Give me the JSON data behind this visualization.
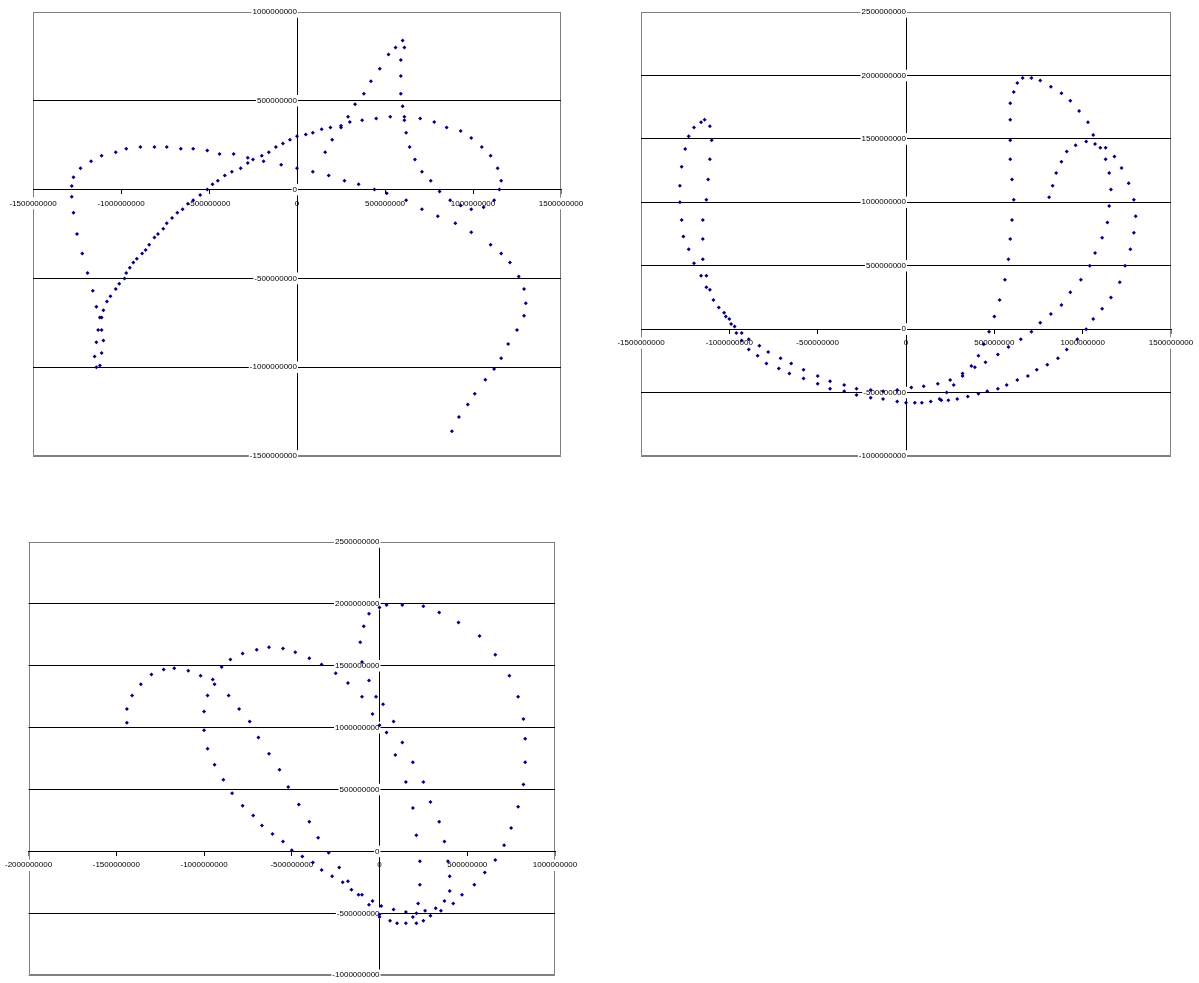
{
  "chart_data": [
    {
      "type": "scatter",
      "color": "#000080",
      "marker": "diamond",
      "grid": "y",
      "xlim": [
        -1500000000,
        1500000000
      ],
      "xticks": [
        -1500000000,
        -1000000000,
        -500000000,
        0,
        500000000,
        1000000000,
        1500000000
      ],
      "ylim": [
        -1500000000,
        1000000000
      ],
      "yticks": [
        -1500000000,
        -1000000000,
        -500000000,
        0,
        500000000,
        1000000000
      ],
      "x": [
        160000000.0,
        200000000.0,
        250000000.0,
        290000000.0,
        330000000.0,
        380000000.0,
        420000000.0,
        470000000.0,
        520000000.0,
        560000000.0,
        600000000.0,
        610000000.0,
        590000000.0,
        590000000.0,
        590000000.0,
        600000000.0,
        610000000.0,
        620000000.0,
        640000000.0,
        670000000.0,
        710000000.0,
        760000000.0,
        810000000.0,
        870000000.0,
        930000000.0,
        990000000.0,
        1060000000.0,
        1120000000.0,
        1150000000.0,
        1160000000.0,
        1140000000.0,
        1100000000.0,
        1050000000.0,
        990000000.0,
        930000000.0,
        850000000.0,
        780000000.0,
        700000000.0,
        610000000.0,
        530000000.0,
        450000000.0,
        370000000.0,
        300000000.0,
        250000000.0,
        190000000.0,
        140000000.0,
        90000000.0,
        50000000.0,
        0,
        -40000000.0,
        -80000000.0,
        -120000000.0,
        -160000000.0,
        -200000000.0,
        -250000000.0,
        -280000000.0,
        -320000000.0,
        -370000000.0,
        -410000000.0,
        -450000000.0,
        -480000000.0,
        -510000000.0,
        -550000000.0,
        -590000000.0,
        -620000000.0,
        -650000000.0,
        -680000000.0,
        -710000000.0,
        -740000000.0,
        -760000000.0,
        -790000000.0,
        -810000000.0,
        -840000000.0,
        -860000000.0,
        -880000000.0,
        -910000000.0,
        -930000000.0,
        -950000000.0,
        -970000000.0,
        -980000000.0,
        -1010000000.0,
        -1030000000.0,
        -1060000000.0,
        -1080000000.0,
        -1100000000.0,
        -1110000000.0,
        -1130000000.0,
        -1140000000.0,
        -1150000000.0,
        -1140000000.0,
        -1120000000.0,
        -1110000000.0,
        -1100000000.0,
        -1110000000.0,
        -1120000000.0,
        -1140000000.0,
        -1160000000.0,
        -1190000000.0,
        -1220000000.0,
        -1250000000.0,
        -1270000000.0,
        -1280000000.0,
        -1280000000.0,
        -1270000000.0,
        -1230000000.0,
        -1170000000.0,
        -1110000000.0,
        -1030000000.0,
        -970000000.0,
        -890000000.0,
        -810000000.0,
        -740000000.0,
        -660000000.0,
        -590000000.0,
        -510000000.0,
        -440000000.0,
        -360000000.0,
        -280000000.0,
        -190000000.0,
        -90000000.0,
        0,
        90000000.0,
        180000000.0,
        270000000.0,
        350000000.0,
        440000000.0,
        510000000.0,
        620000000.0,
        710000000.0,
        800000000.0,
        900000000.0,
        990000000.0,
        1100000000.0,
        1160000000.0,
        1210000000.0,
        1260000000.0,
        1290000000.0,
        1300000000.0,
        1290000000.0,
        1250000000.0,
        1200000000.0,
        1160000000.0,
        1120000000.0,
        1070000000.0,
        1010000000.0,
        970000000.0,
        920000000.0,
        880000000.0
      ],
      "values": [
        210000000.0,
        280000000.0,
        350000000.0,
        410000000.0,
        480000000.0,
        540000000.0,
        610000000.0,
        680000000.0,
        760000000.0,
        800000000.0,
        840000000.0,
        800000000.0,
        730000000.0,
        640000000.0,
        540000000.0,
        470000000.0,
        390000000.0,
        320000000.0,
        240000000.0,
        170000000.0,
        100000000.0,
        50000000.0,
        -10000000.0,
        -60000000.0,
        -90000000.0,
        -110000000.0,
        -100000000.0,
        -60000000.0,
        0,
        50000000.0,
        120000000.0,
        190000000.0,
        240000000.0,
        290000000.0,
        330000000.0,
        350000000.0,
        380000000.0,
        400000000.0,
        410000000.0,
        410000000.0,
        400000000.0,
        390000000.0,
        380000000.0,
        360000000.0,
        350000000.0,
        340000000.0,
        320000000.0,
        310000000.0,
        300000000.0,
        280000000.0,
        260000000.0,
        240000000.0,
        210000000.0,
        190000000.0,
        170000000.0,
        150000000.0,
        120000000.0,
        100000000.0,
        80000000.0,
        50000000.0,
        30000000.0,
        0,
        -30000000.0,
        -60000000.0,
        -80000000.0,
        -110000000.0,
        -130000000.0,
        -160000000.0,
        -190000000.0,
        -220000000.0,
        -250000000.0,
        -270000000.0,
        -310000000.0,
        -340000000.0,
        -360000000.0,
        -390000000.0,
        -410000000.0,
        -440000000.0,
        -470000000.0,
        -500000000.0,
        -530000000.0,
        -560000000.0,
        -600000000.0,
        -630000000.0,
        -680000000.0,
        -720000000.0,
        -790000000.0,
        -860000000.0,
        -940000000.0,
        -1000000000.0,
        -990000000.0,
        -920000000.0,
        -850000000.0,
        -790000000.0,
        -720000000.0,
        -660000000.0,
        -570000000.0,
        -470000000.0,
        -360000000.0,
        -250000000.0,
        -130000000.0,
        -40000000.0,
        20000000.0,
        70000000.0,
        120000000.0,
        160000000.0,
        190000000.0,
        210000000.0,
        230000000.0,
        240000000.0,
        240000000.0,
        240000000.0,
        230000000.0,
        230000000.0,
        220000000.0,
        200000000.0,
        200000000.0,
        180000000.0,
        160000000.0,
        140000000.0,
        120000000.0,
        100000000.0,
        80000000.0,
        50000000.0,
        30000000.0,
        0,
        -20000000.0,
        -60000000.0,
        -110000000.0,
        -150000000.0,
        -190000000.0,
        -240000000.0,
        -310000000.0,
        -360000000.0,
        -410000000.0,
        -490000000.0,
        -560000000.0,
        -640000000.0,
        -710000000.0,
        -790000000.0,
        -870000000.0,
        -950000000.0,
        -1010000000.0,
        -1070000000.0,
        -1150000000.0,
        -1210000000.0,
        -1280000000.0,
        -1360000000.0
      ]
    },
    {
      "type": "scatter",
      "color": "#000080",
      "marker": "diamond",
      "grid": "y",
      "xlim": [
        -1500000000,
        1500000000
      ],
      "xticks": [
        -1500000000,
        -1000000000,
        -500000000,
        0,
        500000000,
        1000000000,
        1500000000
      ],
      "ylim": [
        -1000000000,
        2500000000
      ],
      "yticks": [
        -1000000000,
        -500000000,
        0,
        500000000,
        1000000000,
        1500000000,
        2000000000,
        2500000000
      ],
      "x": [
        -1140000000.0,
        -1110000000.0,
        -1100000000.0,
        -1110000000.0,
        -1120000000.0,
        -1130000000.0,
        -1150000000.0,
        -1150000000.0,
        -1150000000.0,
        -1130000000.0,
        -1110000000.0,
        -1160000000.0,
        -1200000000.0,
        -1230000000.0,
        -1250000000.0,
        -1270000000.0,
        -1280000000.0,
        -1280000000.0,
        -1270000000.0,
        -1260000000.0,
        -1230000000.0,
        -1200000000.0,
        -1160000000.0,
        -1130000000.0,
        -1090000000.0,
        -1060000000.0,
        -1020000000.0,
        -990000000.0,
        -960000000.0,
        -930000000.0,
        -890000000.0,
        -840000000.0,
        -790000000.0,
        -720000000.0,
        -660000000.0,
        -580000000.0,
        -500000000.0,
        -430000000.0,
        -350000000.0,
        -280000000.0,
        -200000000.0,
        -130000000.0,
        -50000000.0,
        0,
        50000000.0,
        90000000.0,
        140000000.0,
        200000000.0,
        240000000.0,
        290000000.0,
        350000000.0,
        410000000.0,
        460000000.0,
        520000000.0,
        570000000.0,
        630000000.0,
        690000000.0,
        740000000.0,
        800000000.0,
        860000000.0,
        910000000.0,
        970000000.0,
        1020000000.0,
        1060000000.0,
        1110000000.0,
        1160000000.0,
        1210000000.0,
        1240000000.0,
        1270000000.0,
        1290000000.0,
        1300000000.0,
        1290000000.0,
        1260000000.0,
        1220000000.0,
        1180000000.0,
        1130000000.0,
        1070000000.0,
        1020000000.0,
        960000000.0,
        910000000.0,
        880000000.0,
        850000000.0,
        830000000.0,
        810000000.0,
        -1030000000.0,
        -1000000000.0,
        -970000000.0,
        -930000000.0,
        -890000000.0,
        -830000000.0,
        -780000000.0,
        -710000000.0,
        -650000000.0,
        -580000000.0,
        -500000000.0,
        -430000000.0,
        -350000000.0,
        -280000000.0,
        -200000000.0,
        -130000000.0,
        -50000000.0,
        30000000.0,
        100000000.0,
        180000000.0,
        250000000.0,
        320000000.0,
        390000000.0,
        450000000.0,
        520000000.0,
        580000000.0,
        650000000.0,
        710000000.0,
        760000000.0,
        820000000.0,
        880000000.0,
        930000000.0,
        990000000.0,
        1040000000.0,
        1070000000.0,
        1110000000.0,
        1140000000.0,
        1150000000.0,
        1160000000.0,
        1150000000.0,
        1130000000.0,
        1100000000.0,
        1060000000.0,
        1030000000.0,
        980000000.0,
        930000000.0,
        880000000.0,
        820000000.0,
        760000000.0,
        710000000.0,
        660000000.0,
        630000000.0,
        610000000.0,
        590000000.0,
        590000000.0,
        590000000.0,
        590000000.0,
        600000000.0,
        610000000.0,
        600000000.0,
        590000000.0,
        580000000.0,
        560000000.0,
        530000000.0,
        500000000.0,
        470000000.0,
        440000000.0,
        410000000.0,
        370000000.0,
        320000000.0,
        270000000.0,
        230000000.0,
        190000000.0
      ],
      "values": [
        1650000000.0,
        1600000000.0,
        1490000000.0,
        1340000000.0,
        1180000000.0,
        1020000000.0,
        860000000.0,
        710000000.0,
        550000000.0,
        420000000.0,
        310000000.0,
        1630000000.0,
        1590000000.0,
        1520000000.0,
        1420000000.0,
        1280000000.0,
        1130000000.0,
        1000000000.0,
        860000000.0,
        730000000.0,
        630000000.0,
        520000000.0,
        420000000.0,
        330000000.0,
        230000000.0,
        170000000.0,
        100000000.0,
        40000000.0,
        -30000000.0,
        -90000000.0,
        -160000000.0,
        -210000000.0,
        -270000000.0,
        -310000000.0,
        -350000000.0,
        -390000000.0,
        -430000000.0,
        -470000000.0,
        -490000000.0,
        -520000000.0,
        -540000000.0,
        -550000000.0,
        -570000000.0,
        -580000000.0,
        -580000000.0,
        -580000000.0,
        -570000000.0,
        -560000000.0,
        -560000000.0,
        -550000000.0,
        -530000000.0,
        -510000000.0,
        -490000000.0,
        -470000000.0,
        -440000000.0,
        -400000000.0,
        -370000000.0,
        -320000000.0,
        -280000000.0,
        -230000000.0,
        -160000000.0,
        -80000000.0,
        0,
        80000000.0,
        160000000.0,
        250000000.0,
        370000000.0,
        500000000.0,
        630000000.0,
        760000000.0,
        890000000.0,
        1020000000.0,
        1150000000.0,
        1270000000.0,
        1360000000.0,
        1430000000.0,
        1460000000.0,
        1480000000.0,
        1450000000.0,
        1400000000.0,
        1320000000.0,
        1230000000.0,
        1130000000.0,
        1040000000.0,
        130000000.0,
        80000000.0,
        20000000.0,
        -30000000.0,
        -80000000.0,
        -130000000.0,
        -180000000.0,
        -230000000.0,
        -270000000.0,
        -320000000.0,
        -370000000.0,
        -410000000.0,
        -440000000.0,
        -470000000.0,
        -480000000.0,
        -490000000.0,
        -480000000.0,
        -460000000.0,
        -450000000.0,
        -430000000.0,
        -400000000.0,
        -350000000.0,
        -300000000.0,
        -260000000.0,
        -200000000.0,
        -140000000.0,
        -80000000.0,
        -20000000.0,
        50000000.0,
        120000000.0,
        190000000.0,
        290000000.0,
        390000000.0,
        500000000.0,
        600000000.0,
        720000000.0,
        840000000.0,
        970000000.0,
        1100000000.0,
        1230000000.0,
        1340000000.0,
        1430000000.0,
        1530000000.0,
        1630000000.0,
        1720000000.0,
        1800000000.0,
        1860000000.0,
        1910000000.0,
        1960000000.0,
        1980000000.0,
        1980000000.0,
        1940000000.0,
        1870000000.0,
        1780000000.0,
        1650000000.0,
        1490000000.0,
        1340000000.0,
        1180000000.0,
        1020000000.0,
        860000000.0,
        710000000.0,
        550000000.0,
        390000000.0,
        230000000.0,
        100000000.0,
        -20000000.0,
        -120000000.0,
        -210000000.0,
        -290000000.0,
        -370000000.0,
        -440000000.0,
        -500000000.0,
        -550000000.0
      ]
    },
    {
      "type": "scatter",
      "color": "#000080",
      "marker": "diamond",
      "grid": "y",
      "xlim": [
        -2000000000,
        1000000000
      ],
      "xticks": [
        -2000000000,
        -1500000000,
        -1000000000,
        -500000000,
        0,
        500000000,
        1000000000
      ],
      "ylim": [
        -1000000000,
        2500000000
      ],
      "yticks": [
        -1000000000,
        -500000000,
        0,
        500000000,
        1000000000,
        1500000000,
        2000000000,
        2500000000
      ],
      "x": [
        -1440000000.0,
        -1440000000.0,
        -1410000000.0,
        -1360000000.0,
        -1300000000.0,
        -1230000000.0,
        -1170000000.0,
        -1090000000.0,
        -1020000000.0,
        -940000000.0,
        -860000000.0,
        -800000000.0,
        -740000000.0,
        -690000000.0,
        -630000000.0,
        -570000000.0,
        -520000000.0,
        -460000000.0,
        -400000000.0,
        -350000000.0,
        -290000000.0,
        -230000000.0,
        -180000000.0,
        -120000000.0,
        -60000000.0,
        0,
        40000000.0,
        90000000.0,
        150000000.0,
        190000000.0,
        210000000.0,
        230000000.0,
        230000000.0,
        220000000.0,
        190000000.0,
        150000000.0,
        100000000.0,
        60000000.0,
        0,
        0,
        -40000000.0,
        -100000000.0,
        -180000000.0,
        -250000000.0,
        -330000000.0,
        -400000000.0,
        -480000000.0,
        -550000000.0,
        -630000000.0,
        -700000000.0,
        -780000000.0,
        -850000000.0,
        -900000000.0,
        -950000000.0,
        -980000000.0,
        -1000000000.0,
        -1000000000.0,
        -980000000.0,
        -940000000.0,
        -890000000.0,
        -840000000.0,
        -780000000.0,
        -720000000.0,
        -670000000.0,
        -610000000.0,
        -550000000.0,
        -500000000.0,
        -440000000.0,
        -380000000.0,
        -330000000.0,
        -270000000.0,
        -210000000.0,
        -160000000.0,
        -100000000.0,
        -40000000.0,
        10000000.0,
        80000000.0,
        150000000.0,
        210000000.0,
        260000000.0,
        320000000.0,
        370000000.0,
        400000000.0,
        400000000.0,
        390000000.0,
        370000000.0,
        340000000.0,
        290000000.0,
        250000000.0,
        190000000.0,
        130000000.0,
        80000000.0,
        20000000.0,
        -20000000.0,
        -60000000.0,
        -100000000.0,
        -110000000.0,
        -90000000.0,
        -60000000.0,
        0,
        40000000.0,
        130000000.0,
        250000000.0,
        340000000.0,
        450000000.0,
        570000000.0,
        660000000.0,
        740000000.0,
        790000000.0,
        820000000.0,
        830000000.0,
        830000000.0,
        820000000.0,
        790000000.0,
        750000000.0,
        710000000.0,
        660000000.0,
        600000000.0,
        540000000.0,
        470000000.0,
        420000000.0,
        350000000.0,
        290000000.0,
        250000000.0,
        210000000.0
      ],
      "values": [
        1040000000.0,
        1150000000.0,
        1260000000.0,
        1350000000.0,
        1430000000.0,
        1470000000.0,
        1480000000.0,
        1460000000.0,
        1420000000.0,
        1350000000.0,
        1260000000.0,
        1150000000.0,
        1050000000.0,
        920000000.0,
        790000000.0,
        660000000.0,
        520000000.0,
        380000000.0,
        240000000.0,
        110000000.0,
        -10000000.0,
        -130000000.0,
        -240000000.0,
        -350000000.0,
        -430000000.0,
        -510000000.0,
        960000000.0,
        780000000.0,
        560000000.0,
        350000000.0,
        130000000.0,
        -80000000.0,
        -270000000.0,
        -420000000.0,
        -530000000.0,
        -580000000.0,
        -580000000.0,
        -560000000.0,
        -530000000.0,
        1020000000.0,
        1110000000.0,
        1250000000.0,
        1360000000.0,
        1440000000.0,
        1510000000.0,
        1560000000.0,
        1610000000.0,
        1640000000.0,
        1650000000.0,
        1630000000.0,
        1600000000.0,
        1550000000.0,
        1490000000.0,
        1390000000.0,
        1260000000.0,
        1130000000.0,
        980000000.0,
        830000000.0,
        700000000.0,
        580000000.0,
        470000000.0,
        370000000.0,
        290000000.0,
        210000000.0,
        140000000.0,
        80000000.0,
        10000000.0,
        -40000000.0,
        -90000000.0,
        -150000000.0,
        -200000000.0,
        -250000000.0,
        -310000000.0,
        -350000000.0,
        -400000000.0,
        -440000000.0,
        -470000000.0,
        -490000000.0,
        -500000000.0,
        -480000000.0,
        -460000000.0,
        -400000000.0,
        -320000000.0,
        -200000000.0,
        -80000000.0,
        80000000.0,
        240000000.0,
        400000000.0,
        560000000.0,
        720000000.0,
        880000000.0,
        1050000000.0,
        1190000000.0,
        1250000000.0,
        1380000000.0,
        1530000000.0,
        1690000000.0,
        1820000000.0,
        1920000000.0,
        1970000000.0,
        1990000000.0,
        1990000000.0,
        1980000000.0,
        1930000000.0,
        1850000000.0,
        1740000000.0,
        1590000000.0,
        1420000000.0,
        1250000000.0,
        1070000000.0,
        910000000.0,
        720000000.0,
        540000000.0,
        360000000.0,
        190000000.0,
        50000000.0,
        -70000000.0,
        -170000000.0,
        -270000000.0,
        -350000000.0,
        -420000000.0,
        -480000000.0,
        -520000000.0,
        -560000000.0,
        -580000000.0
      ]
    }
  ]
}
